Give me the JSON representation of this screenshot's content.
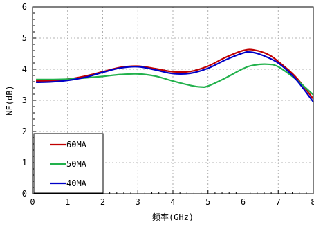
{
  "chart_data": {
    "type": "line",
    "xlabel": "频率(GHz)",
    "ylabel": "NF(dB)",
    "xlim": [
      0,
      8
    ],
    "ylim": [
      0,
      6
    ],
    "xticks": [
      "0",
      "1",
      "2",
      "3",
      "4",
      "5",
      "6",
      "7",
      "8"
    ],
    "yticks": [
      "0",
      "1",
      "2",
      "3",
      "4",
      "5",
      "6"
    ],
    "grid": true,
    "legend_position": "bottom-left",
    "series": [
      {
        "name": "60MA",
        "color": "#c00000",
        "x": [
          0.1,
          0.5,
          1,
          1.5,
          2,
          2.5,
          3,
          3.5,
          4,
          4.5,
          5,
          5.5,
          6,
          6.3,
          6.7,
          7,
          7.5,
          8
        ],
        "y": [
          3.62,
          3.63,
          3.68,
          3.78,
          3.92,
          4.06,
          4.1,
          4.02,
          3.92,
          3.93,
          4.1,
          4.38,
          4.6,
          4.62,
          4.48,
          4.25,
          3.75,
          3.05
        ]
      },
      {
        "name": "50MA",
        "color": "#22b14c",
        "x": [
          0.1,
          0.5,
          1,
          1.5,
          2,
          2.5,
          3,
          3.5,
          4,
          4.5,
          4.8,
          5,
          5.5,
          6,
          6.3,
          6.7,
          7,
          7.5,
          8
        ],
        "y": [
          3.67,
          3.67,
          3.68,
          3.72,
          3.77,
          3.83,
          3.85,
          3.78,
          3.62,
          3.48,
          3.43,
          3.46,
          3.72,
          4.02,
          4.13,
          4.16,
          4.08,
          3.68,
          3.18
        ]
      },
      {
        "name": "40MA",
        "color": "#0000c8",
        "x": [
          0.1,
          0.5,
          1,
          1.5,
          2,
          2.5,
          3,
          3.5,
          4,
          4.5,
          5,
          5.5,
          6,
          6.2,
          6.5,
          7,
          7.5,
          8
        ],
        "y": [
          3.58,
          3.59,
          3.64,
          3.74,
          3.9,
          4.04,
          4.08,
          3.98,
          3.86,
          3.87,
          4.03,
          4.3,
          4.52,
          4.55,
          4.47,
          4.2,
          3.68,
          2.95
        ]
      }
    ]
  }
}
